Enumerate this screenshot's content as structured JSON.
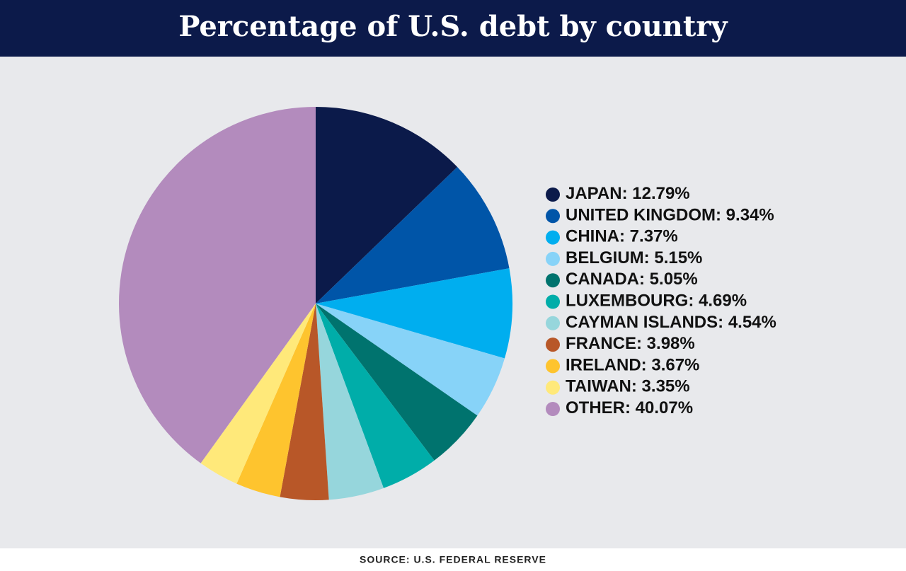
{
  "chart_data": {
    "type": "pie",
    "title": "Percentage of U.S. debt by country",
    "source": "SOURCE: U.S. FEDERAL RESERVE",
    "categories": [
      "JAPAN",
      "UNITED KINGDOM",
      "CHINA",
      "BELGIUM",
      "CANADA",
      "LUXEMBOURG",
      "CAYMAN ISLANDS",
      "FRANCE",
      "IRELAND",
      "TAIWAN",
      "OTHER"
    ],
    "values": [
      12.79,
      9.34,
      7.37,
      5.15,
      5.05,
      4.69,
      4.54,
      3.98,
      3.67,
      3.35,
      40.07
    ],
    "value_labels": [
      "12.79%",
      "9.34%",
      "7.37%",
      "5.15%",
      "5.05%",
      "4.69%",
      "4.54%",
      "3.98%",
      "3.67%",
      "3.35%",
      "40.07%"
    ],
    "label_separator": ": ",
    "colors": [
      "#0b1a4a",
      "#0055a8",
      "#00aeef",
      "#87d3f8",
      "#00736e",
      "#00ada9",
      "#96d6dc",
      "#b85728",
      "#fec42e",
      "#ffe97a",
      "#b38bbd"
    ]
  }
}
